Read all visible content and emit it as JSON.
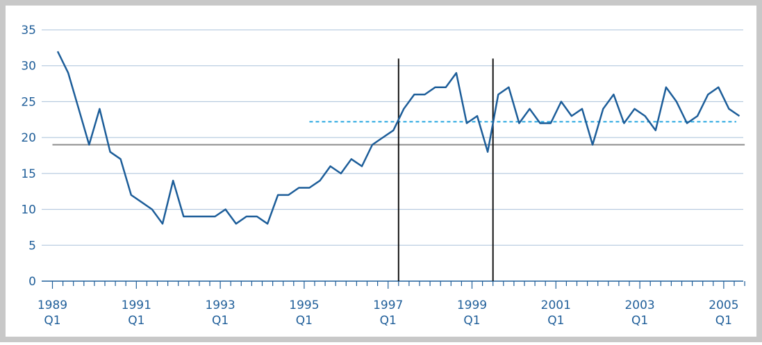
{
  "chart_data": {
    "type": "line",
    "categories": [
      "1989 Q1",
      null,
      null,
      null,
      null,
      null,
      null,
      null,
      "1991 Q1",
      null,
      null,
      null,
      null,
      null,
      null,
      null,
      "1993 Q1",
      null,
      null,
      null,
      null,
      null,
      null,
      null,
      "1995 Q1",
      null,
      null,
      null,
      null,
      null,
      null,
      null,
      "1997 Q1",
      null,
      null,
      null,
      null,
      null,
      null,
      null,
      "1999 Q1",
      null,
      null,
      null,
      null,
      null,
      null,
      null,
      "2001 Q1",
      null,
      null,
      null,
      null,
      null,
      null,
      null,
      "2003 Q1",
      null,
      null,
      null,
      null,
      null,
      null,
      null,
      "2005 Q1",
      null
    ],
    "series": [
      {
        "color": "#1c5d99",
        "values": [
          32,
          29,
          24,
          19,
          24,
          18,
          17,
          12,
          11,
          10,
          8,
          14,
          9,
          9,
          9,
          9,
          10,
          8,
          9,
          9,
          8,
          12,
          12,
          13,
          13,
          14,
          16,
          15,
          17,
          16,
          19,
          20,
          21,
          24,
          26,
          26,
          27,
          27,
          29,
          22,
          23,
          18,
          26,
          27,
          22,
          24,
          22,
          22,
          25,
          23,
          24,
          19,
          24,
          26,
          22,
          24,
          23,
          21,
          27,
          25,
          22,
          23,
          26,
          27,
          24,
          23
        ]
      }
    ],
    "ylim": [
      0,
      35
    ],
    "yticks": [
      0,
      5,
      10,
      15,
      20,
      25,
      30,
      35
    ],
    "grid": true,
    "reference_lines": [
      {
        "value": 19,
        "color": "#8c8c8c",
        "style": "solid"
      },
      {
        "value": 22.2,
        "color": "#29a8e0",
        "style": "dashed",
        "from": 24.5
      }
    ],
    "vertical_lines": [
      {
        "x": 33,
        "top": 31
      },
      {
        "x": 42,
        "top": 31
      }
    ]
  }
}
